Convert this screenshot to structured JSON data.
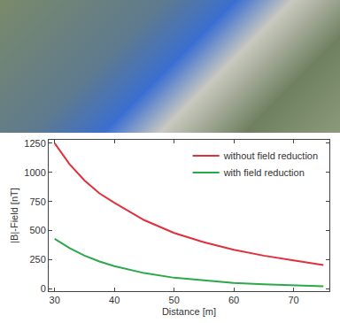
{
  "chart_data": {
    "type": "line",
    "x_label": "Distance [m]",
    "y_label": "|B|-Field [nT]",
    "x": [
      30,
      32.5,
      35,
      37.5,
      40,
      45,
      50,
      55,
      60,
      65,
      70,
      75
    ],
    "series": [
      {
        "name": "without field reduction",
        "color": "#e0303c",
        "values": [
          1250,
          1070,
          930,
          820,
          740,
          590,
          480,
          400,
          335,
          285,
          245,
          205
        ]
      },
      {
        "name": "with field reduction",
        "color": "#2aa84a",
        "values": [
          430,
          350,
          285,
          235,
          195,
          135,
          95,
          70,
          50,
          38,
          28,
          22
        ]
      }
    ],
    "xlim": [
      29,
      76
    ],
    "xticks": [
      30,
      40,
      50,
      60,
      70
    ],
    "ylim": [
      -20,
      1280
    ],
    "yticks": [
      0,
      250,
      500,
      750,
      1000,
      1250
    ],
    "grid": false,
    "legend": "top right"
  }
}
